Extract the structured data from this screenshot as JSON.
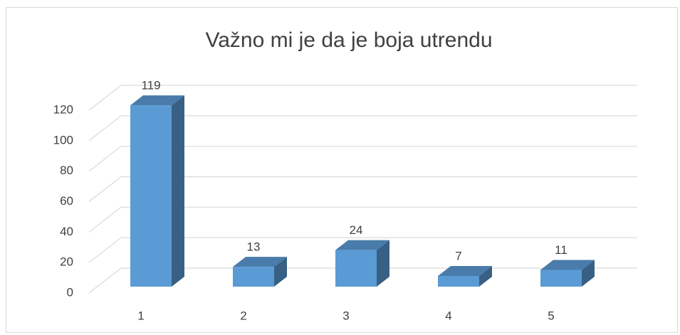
{
  "chart_data": {
    "type": "bar3d",
    "title": "Važno mi je da je boja utrendu",
    "categories": [
      "1",
      "2",
      "3",
      "4",
      "5"
    ],
    "values": [
      119,
      13,
      24,
      7,
      11
    ],
    "color": "#5b9bd5",
    "ylim": [
      0,
      120
    ],
    "yticks": [
      0,
      20,
      40,
      60,
      80,
      100,
      120
    ],
    "grid": true
  }
}
